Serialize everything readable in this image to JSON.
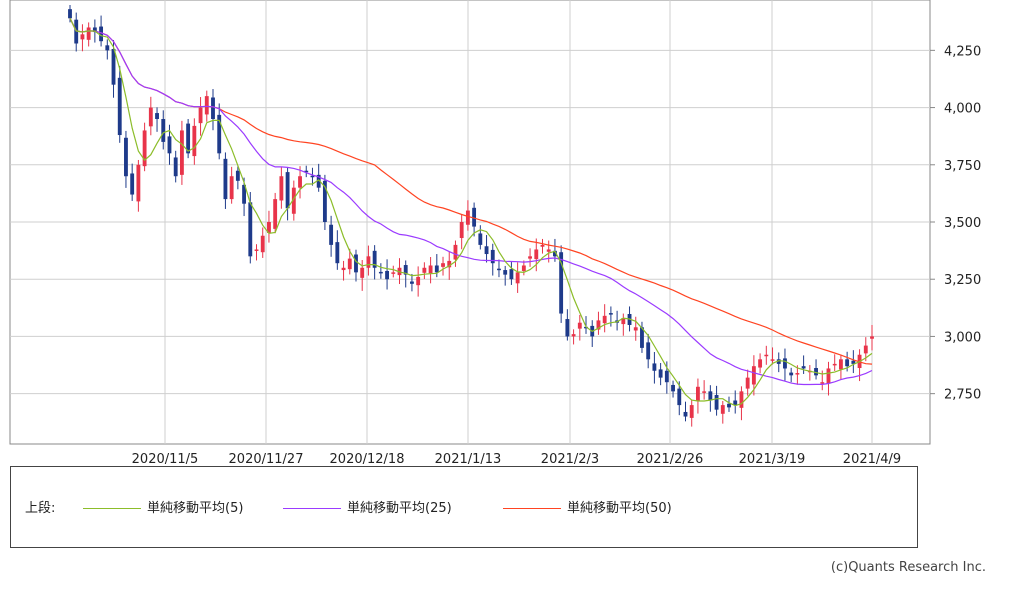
{
  "chart_data": {
    "type": "candlestick",
    "x_tick_labels": [
      "2020/11/5",
      "2020/11/27",
      "2020/12/18",
      "2021/1/13",
      "2021/2/3",
      "2021/2/26",
      "2021/3/19",
      "2021/4/9"
    ],
    "y_ticks": [
      2750,
      3000,
      3250,
      3500,
      3750,
      4000,
      4250
    ],
    "y_tick_labels": [
      "2,750",
      "3,000",
      "3,250",
      "3,500",
      "3,750",
      "4,000",
      "4,250"
    ],
    "ylim": [
      2530,
      4470
    ],
    "colors": {
      "up": "#e8344a",
      "down": "#1e3a8a",
      "ma5": "#8cbd2a",
      "ma25": "#9b3bff",
      "ma50": "#ff4422"
    },
    "closes": [
      4390,
      4280,
      4320,
      4350,
      4330,
      4290,
      4250,
      4100,
      3880,
      3700,
      3620,
      3750,
      3900,
      4000,
      3950,
      3850,
      3800,
      3700,
      3900,
      3800,
      3920,
      4000,
      4050,
      3950,
      3800,
      3600,
      3700,
      3680,
      3580,
      3350,
      3380,
      3440,
      3500,
      3600,
      3700,
      3560,
      3650,
      3700,
      3720,
      3700,
      3650,
      3500,
      3400,
      3320,
      3300,
      3340,
      3280,
      3300,
      3350,
      3300,
      3280,
      3250,
      3280,
      3300,
      3270,
      3230,
      3260,
      3300,
      3310,
      3280,
      3320,
      3330,
      3400,
      3500,
      3550,
      3480,
      3400,
      3360,
      3320,
      3290,
      3270,
      3250,
      3280,
      3310,
      3350,
      3380,
      3400,
      3380,
      3350,
      3100,
      3000,
      3010,
      3060,
      3040,
      3000,
      3070,
      3090,
      3100,
      3060,
      3080,
      3050,
      3040,
      2950,
      2900,
      2850,
      2820,
      2800,
      2760,
      2700,
      2650,
      2700,
      2780,
      2760,
      2720,
      2680,
      2700,
      2690,
      2700,
      2760,
      2820,
      2870,
      2900,
      2920,
      2900,
      2880,
      2860,
      2830,
      2840,
      2860,
      2850,
      2830,
      2800,
      2860,
      2880,
      2900,
      2870,
      2880,
      2920,
      2960,
      3000
    ],
    "series": [
      {
        "name": "単純移動平均(5)",
        "color": "#8cbd2a"
      },
      {
        "name": "単純移動平均(25)",
        "color": "#9b3bff"
      },
      {
        "name": "単純移動平均(50)",
        "color": "#ff4422"
      }
    ],
    "legend_position": "bottom",
    "grid": true
  },
  "legend": {
    "section_label": "上段:",
    "items": [
      "単純移動平均(5)",
      "単純移動平均(25)",
      "単純移動平均(50)"
    ]
  },
  "credit": "(c)Quants Research Inc."
}
